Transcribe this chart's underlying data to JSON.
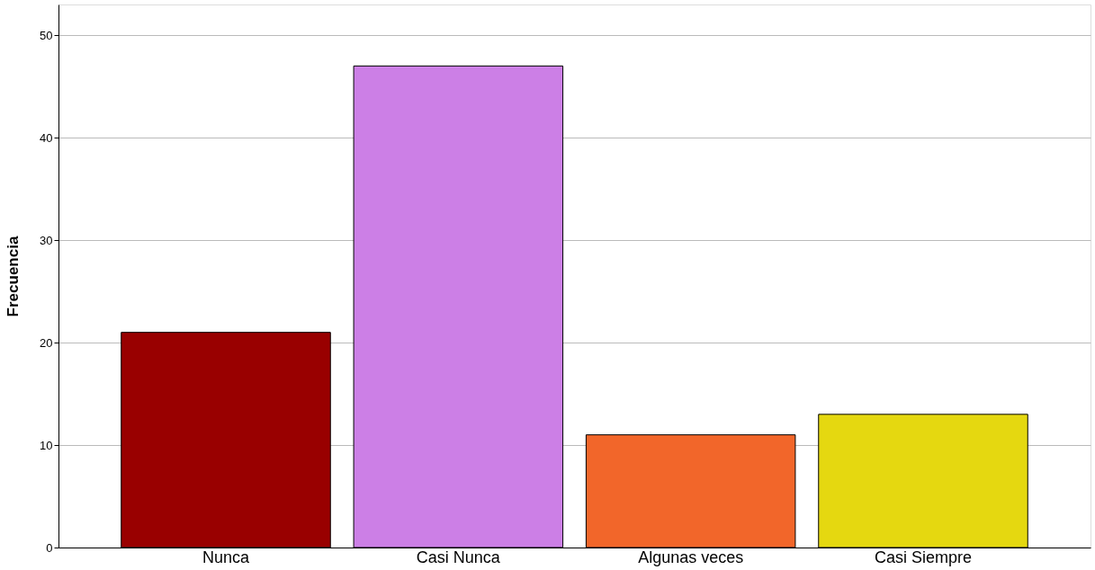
{
  "chart_data": {
    "type": "bar",
    "ylabel": "Frecuencia",
    "categories": [
      "Nunca",
      "Casi Nunca",
      "Algunas veces",
      "Casi Siempre"
    ],
    "values": [
      21,
      47,
      11,
      13
    ],
    "colors": [
      "#990000",
      "#cc7fe6",
      "#f2662a",
      "#e5d810"
    ],
    "ylim": [
      0,
      53
    ],
    "yticks": [
      0,
      10,
      20,
      30,
      40,
      50
    ],
    "grid": "y",
    "legend": false
  }
}
